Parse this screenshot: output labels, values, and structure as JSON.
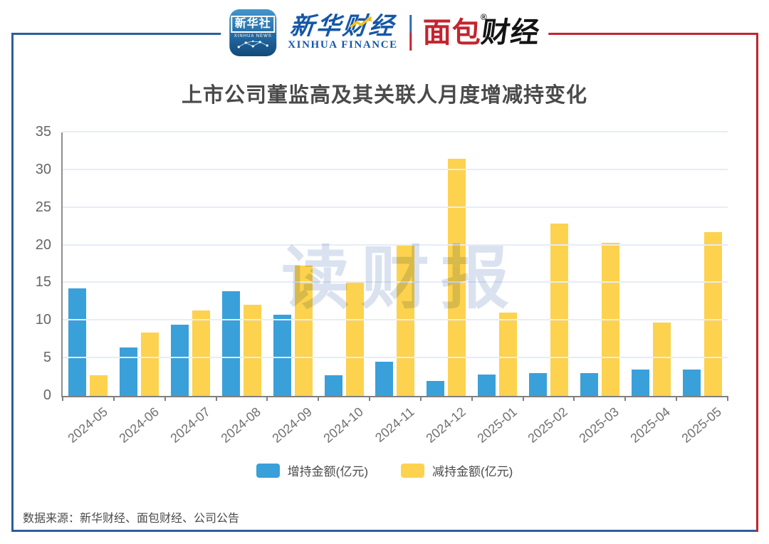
{
  "header": {
    "xinhua_badge": {
      "title": "新华社",
      "subtitle": "XINHUA NEWS"
    },
    "xinhua_finance": {
      "cn": "新华财经",
      "en": "XINHUA FINANCE"
    },
    "bread_finance": {
      "cn_red": "面包",
      "cn_black": "财经",
      "registered_mark": "®"
    }
  },
  "title": "上市公司董监高及其关联人月度增减持变化",
  "watermark": "读财报",
  "chart_data": {
    "type": "bar",
    "categories": [
      "2024-05",
      "2024-06",
      "2024-07",
      "2024-08",
      "2024-09",
      "2024-10",
      "2024-11",
      "2024-12",
      "2025-01",
      "2025-02",
      "2025-03",
      "2025-04",
      "2025-05"
    ],
    "series": [
      {
        "name": "增持金额(亿元)",
        "color": "#3AA0DA",
        "values": [
          14.3,
          6.4,
          9.5,
          13.9,
          10.8,
          2.7,
          4.5,
          2.0,
          2.8,
          3.0,
          3.0,
          3.5,
          3.5
        ]
      },
      {
        "name": "减持金额(亿元)",
        "color": "#FDD24E",
        "values": [
          2.7,
          8.4,
          11.4,
          12.1,
          17.3,
          15.0,
          20.1,
          31.5,
          11.1,
          22.9,
          20.3,
          9.7,
          21.8
        ]
      }
    ],
    "ylim": [
      0,
      35
    ],
    "yticks": [
      0,
      5,
      10,
      15,
      20,
      25,
      30,
      35
    ],
    "grid": true,
    "legend_position": "bottom"
  },
  "footer": {
    "source": "数据来源：新华财经、面包财经、公司公告"
  },
  "colors": {
    "frame_blue": "#2C5F9B",
    "frame_red": "#C2252E",
    "grid": "#E7ECF6"
  }
}
